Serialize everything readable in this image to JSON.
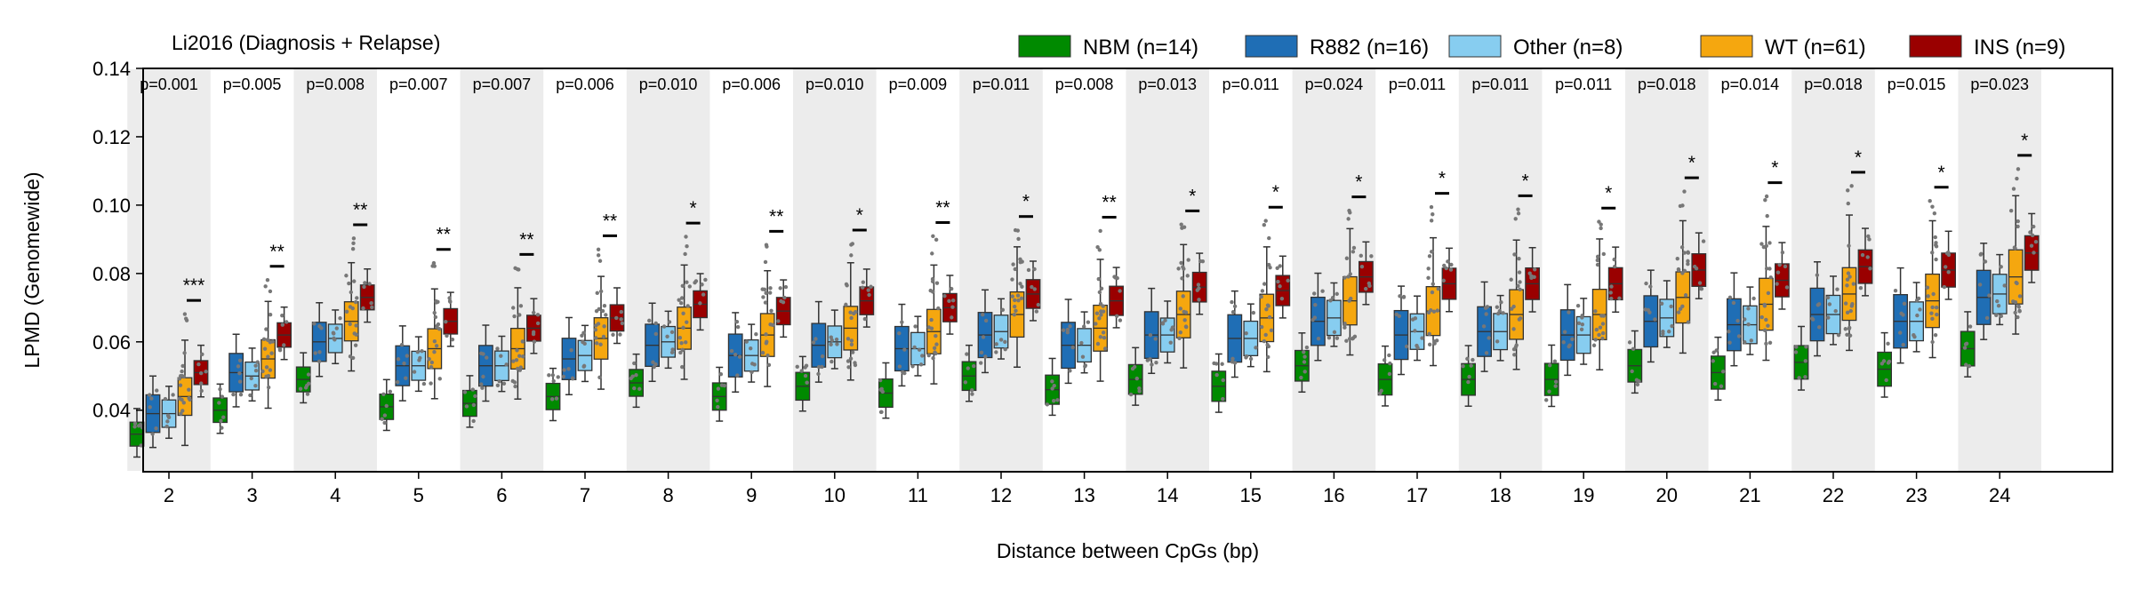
{
  "chart_data": {
    "type": "box",
    "title": "Li2016 (Diagnosis + Relapse)",
    "xlabel": "Distance between CpGs (bp)",
    "ylabel": "LPMD (Genomewide)",
    "ylim": [
      0.022,
      0.14
    ],
    "yticks": [
      "0.04",
      "0.06",
      "0.08",
      "0.10",
      "0.12",
      "0.14"
    ],
    "categories": [
      "2",
      "3",
      "4",
      "5",
      "6",
      "7",
      "8",
      "9",
      "10",
      "11",
      "12",
      "13",
      "14",
      "15",
      "16",
      "17",
      "18",
      "19",
      "20",
      "21",
      "22",
      "23",
      "24"
    ],
    "pvalues": [
      "p=0.001",
      "p=0.005",
      "p=0.008",
      "p=0.007",
      "p=0.007",
      "p=0.006",
      "p=0.010",
      "p=0.006",
      "p=0.010",
      "p=0.009",
      "p=0.011",
      "p=0.008",
      "p=0.013",
      "p=0.011",
      "p=0.024",
      "p=0.011",
      "p=0.011",
      "p=0.011",
      "p=0.018",
      "p=0.014",
      "p=0.018",
      "p=0.015",
      "p=0.023"
    ],
    "significance": [
      "***",
      "**",
      "**",
      "**",
      "**",
      "**",
      "*",
      "**",
      "*",
      "**",
      "*",
      "**",
      "*",
      "*",
      "*",
      "*",
      "*",
      "*",
      "*",
      "*",
      "*",
      "*",
      "*"
    ],
    "legend_position": "top-right",
    "grid": false,
    "series": [
      {
        "name": "NBM (n=14)",
        "color": "#008a00",
        "medians": [
          0.033,
          0.04,
          0.049,
          0.041,
          0.042,
          0.044,
          0.048,
          0.044,
          0.047,
          0.045,
          0.05,
          0.046,
          0.049,
          0.047,
          0.053,
          0.049,
          0.049,
          0.049,
          0.053,
          0.051,
          0.054,
          0.052,
          0.058
        ]
      },
      {
        "name": "R882 (n=16)",
        "color": "#1f6eb5",
        "medians": [
          0.039,
          0.051,
          0.06,
          0.053,
          0.053,
          0.055,
          0.059,
          0.056,
          0.059,
          0.058,
          0.062,
          0.059,
          0.062,
          0.061,
          0.066,
          0.062,
          0.063,
          0.062,
          0.066,
          0.065,
          0.068,
          0.066,
          0.073
        ]
      },
      {
        "name": "Other (n=8)",
        "color": "#87cdf0",
        "medians": [
          0.039,
          0.05,
          0.061,
          0.053,
          0.053,
          0.056,
          0.06,
          0.056,
          0.06,
          0.058,
          0.063,
          0.059,
          0.062,
          0.061,
          0.067,
          0.063,
          0.063,
          0.062,
          0.067,
          0.065,
          0.068,
          0.066,
          0.074
        ]
      },
      {
        "name": "WT (n=61)",
        "color": "#f5a70f",
        "medians": [
          0.044,
          0.055,
          0.066,
          0.058,
          0.058,
          0.061,
          0.064,
          0.062,
          0.064,
          0.063,
          0.068,
          0.064,
          0.068,
          0.067,
          0.072,
          0.069,
          0.068,
          0.068,
          0.073,
          0.071,
          0.074,
          0.072,
          0.079
        ]
      },
      {
        "name": "INS (n=9)",
        "color": "#9a0000",
        "medians": [
          0.051,
          0.062,
          0.073,
          0.066,
          0.064,
          0.067,
          0.071,
          0.069,
          0.072,
          0.07,
          0.074,
          0.072,
          0.076,
          0.075,
          0.079,
          0.077,
          0.077,
          0.077,
          0.081,
          0.078,
          0.082,
          0.081,
          0.086
        ]
      }
    ]
  }
}
